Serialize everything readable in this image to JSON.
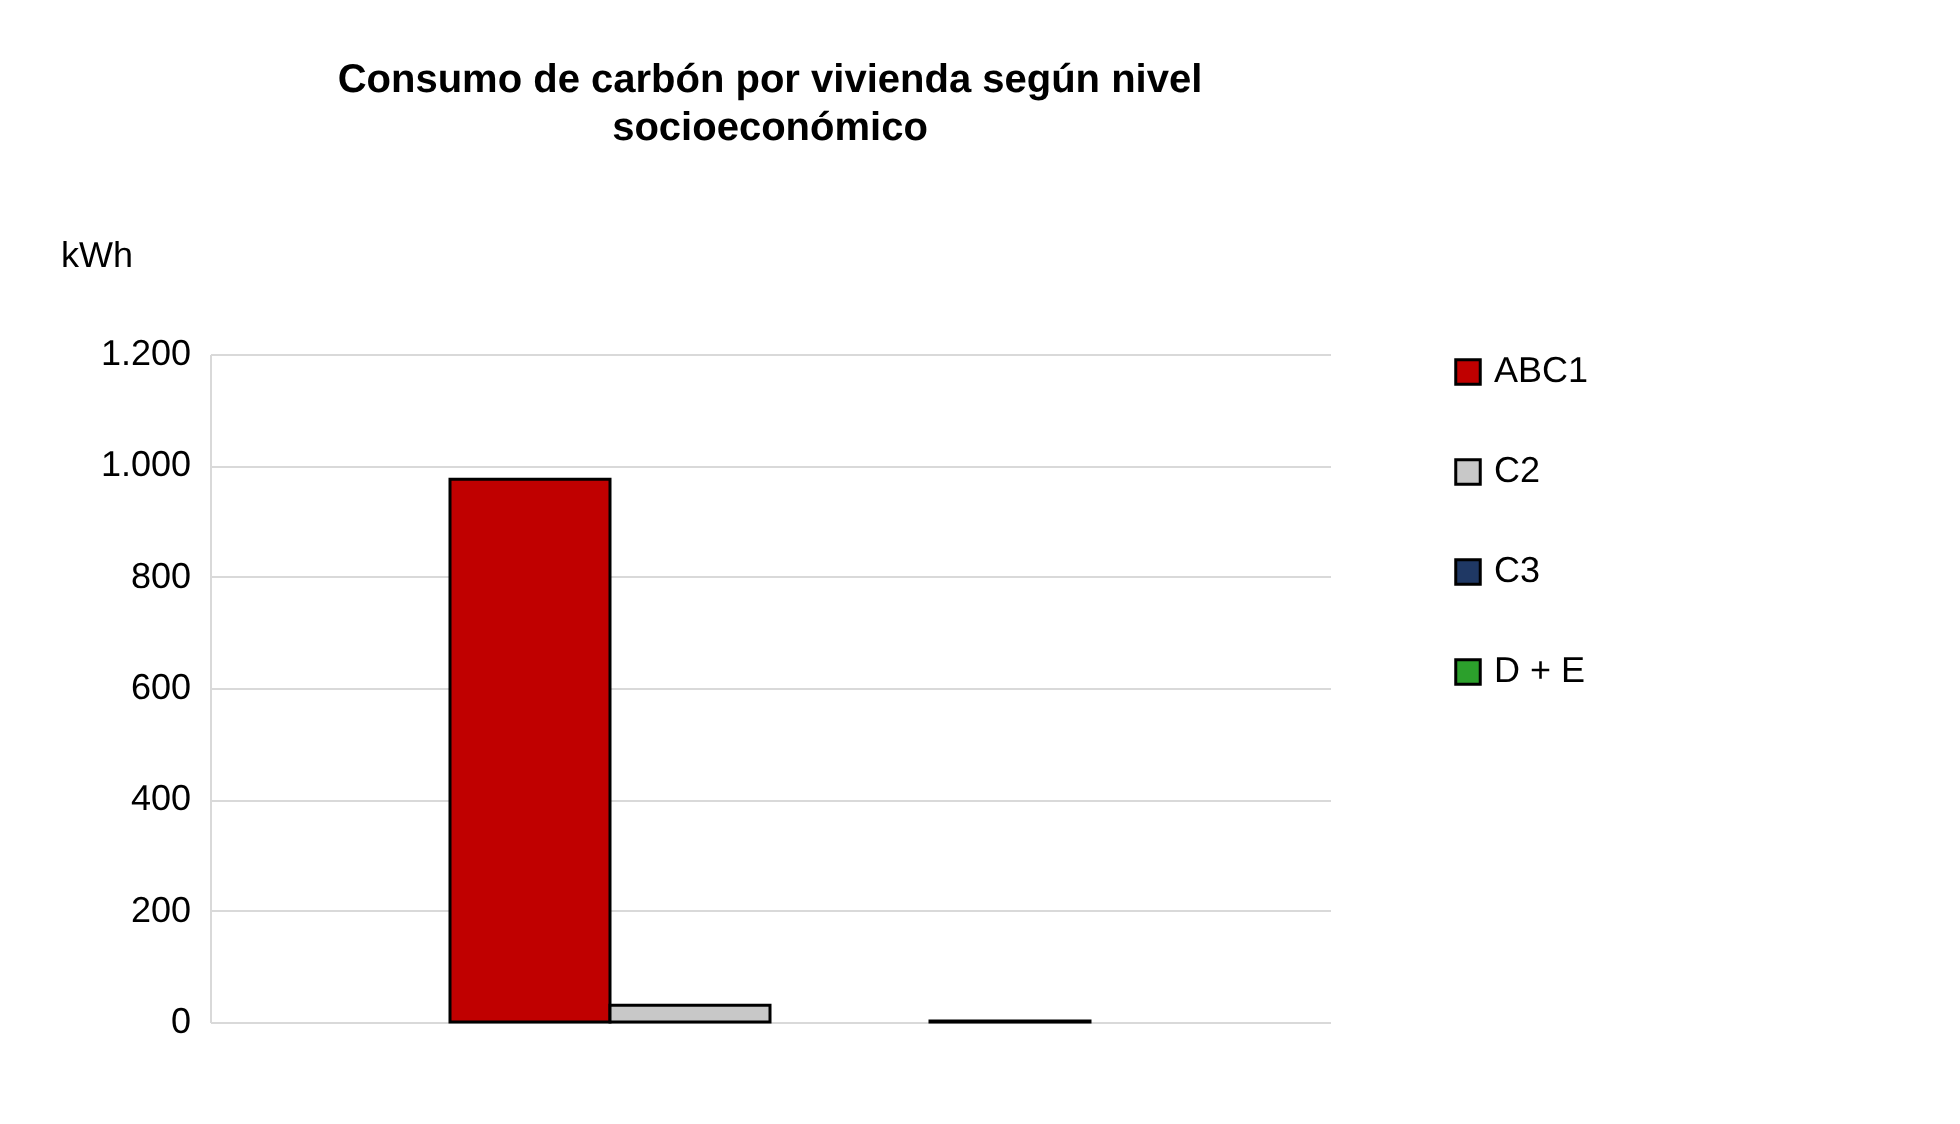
{
  "chart_data": {
    "type": "bar",
    "title": "Consumo de carbón por vivienda según nivel socioeconómico",
    "ylabel": "kWh",
    "categories": [
      null
    ],
    "series": [
      {
        "name": "ABC1",
        "color": "#c00000",
        "values": [
          975
        ]
      },
      {
        "name": "C2",
        "color": "#c8c8c8",
        "values": [
          30
        ]
      },
      {
        "name": "C3",
        "color": "#1f3864",
        "values": [
          null
        ]
      },
      {
        "name": "D + E",
        "color": "#2ca02c",
        "values": [
          2
        ]
      }
    ],
    "ylim": [
      0,
      1200
    ],
    "yticks": [
      {
        "value": 0,
        "label": "0"
      },
      {
        "value": 200,
        "label": "200"
      },
      {
        "value": 400,
        "label": "400"
      },
      {
        "value": 600,
        "label": "600"
      },
      {
        "value": 800,
        "label": "800"
      },
      {
        "value": 1000,
        "label": "1.000"
      },
      {
        "value": 1200,
        "label": "1.200"
      }
    ],
    "grid": "y",
    "legend": "right"
  }
}
